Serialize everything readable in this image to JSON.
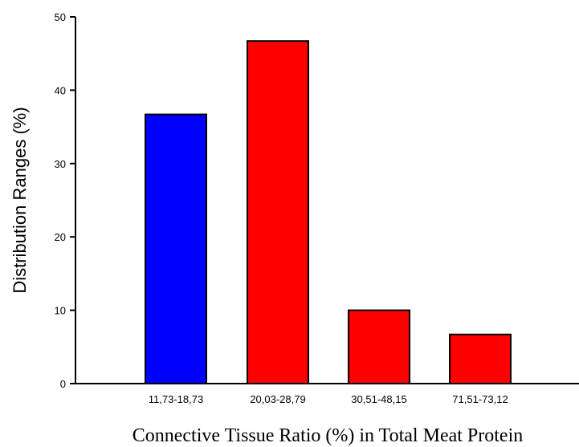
{
  "chart_data": {
    "type": "bar",
    "categories": [
      "11,73-18,73",
      "20,03-28,79",
      "30,51-48,15",
      "71,51-73,12"
    ],
    "values": [
      36.7,
      46.7,
      10.0,
      6.7
    ],
    "colors": [
      "#0000ff",
      "#ff0000",
      "#ff0000",
      "#ff0000"
    ],
    "xlabel": "Connective Tissue Ratio (%) in Total Meat Protein",
    "ylabel": "Distribution Ranges (%)",
    "ylim": [
      0,
      50
    ],
    "yticks": [
      "0",
      "10",
      "20",
      "30",
      "40",
      "50"
    ],
    "grid": false
  }
}
